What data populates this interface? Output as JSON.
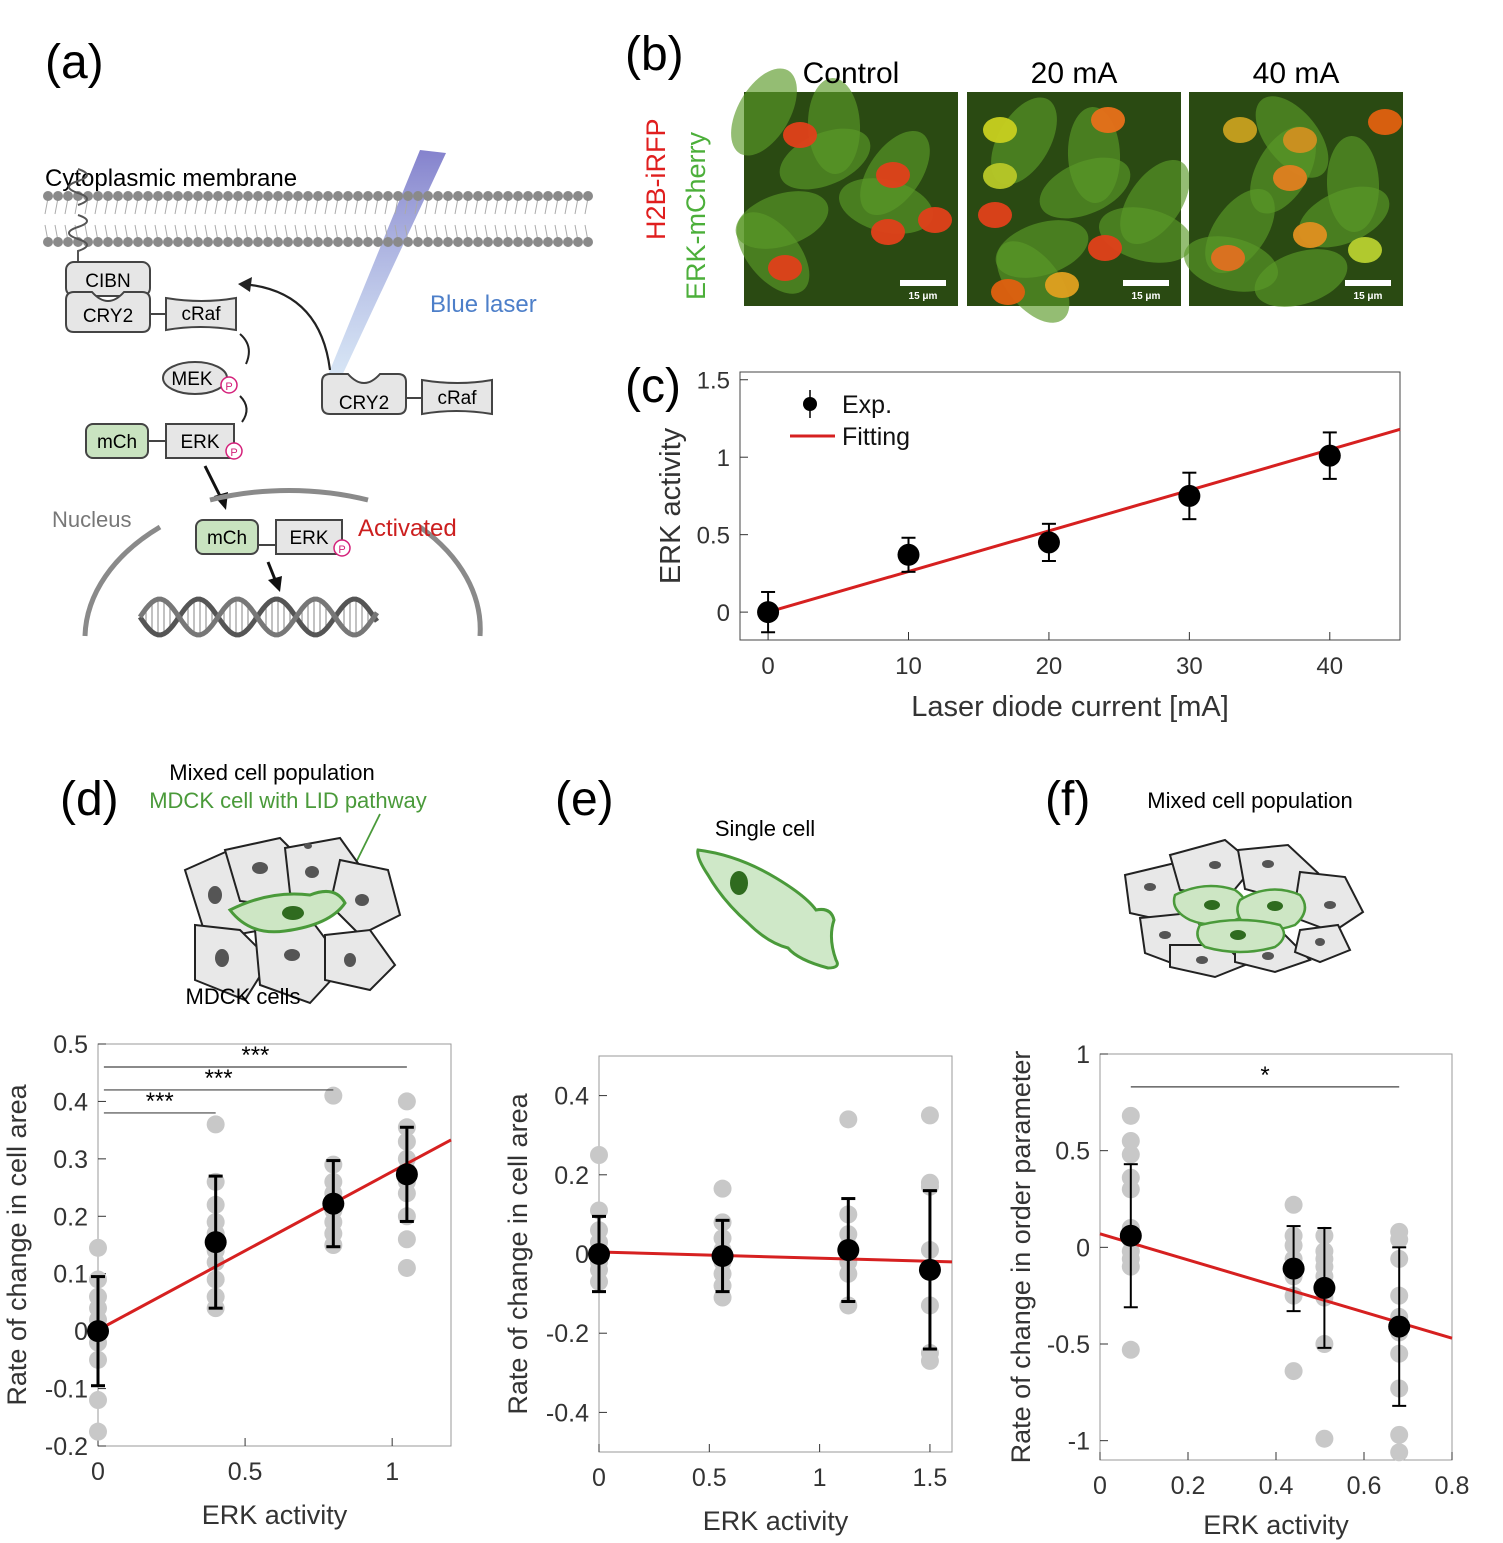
{
  "colors": {
    "exp_marker": "#000000",
    "fit_line": "#d62020",
    "scatter_points": "#c8c8c8",
    "green_cell": "#4a9a3a",
    "membrane": "#8a8a8a",
    "laser": "#5b8bd0",
    "activated_text": "#cc1f1f",
    "phospho": "#d4207a"
  },
  "panel_a": {
    "label": "(a)",
    "membrane": "Cytoplasmic membrane",
    "cibn": "CIBN",
    "cry2": "CRY2",
    "craf": "cRaf",
    "mek": "MEK",
    "erk": "ERK",
    "mch": "mCh",
    "phospho": "P",
    "laser": "Blue laser",
    "nucleus": "Nucleus",
    "activated": "Activated"
  },
  "panel_b": {
    "label": "(b)",
    "ylabel_red": "H2B-iRFP",
    "ylabel_green": "ERK-mCherry",
    "images": [
      {
        "title": "Control",
        "scale": "15 μm"
      },
      {
        "title": "20 mA",
        "scale": "15 μm"
      },
      {
        "title": "40 mA",
        "scale": "15 μm"
      }
    ]
  },
  "panel_d_schematic": {
    "label": "(d)",
    "title": "Mixed cell population",
    "subtitle": "MDCK cell with LID pathway",
    "bottom": "MDCK cells"
  },
  "panel_e_schematic": {
    "label": "(e)",
    "title": "Single cell"
  },
  "panel_f_schematic": {
    "label": "(f)",
    "title": "Mixed cell population"
  },
  "chart_data": [
    {
      "id": "c",
      "label": "(c)",
      "type": "scatter",
      "xlabel": "Laser diode current [mA]",
      "ylabel": "ERK activity",
      "xlim": [
        -2,
        45
      ],
      "ylim": [
        -0.18,
        1.55
      ],
      "xticks": [
        0,
        10,
        20,
        30,
        40
      ],
      "yticks": [
        0,
        0.5,
        1,
        1.5
      ],
      "legend": [
        "Exp.",
        "Fitting"
      ],
      "legend_position": "top-left",
      "series": [
        {
          "name": "Exp.",
          "x": [
            0,
            10,
            20,
            30,
            40
          ],
          "y": [
            0,
            0.37,
            0.45,
            0.75,
            1.01
          ],
          "err": [
            0.13,
            0.11,
            0.12,
            0.15,
            0.15
          ]
        }
      ],
      "fit": {
        "x": [
          0,
          45
        ],
        "y": [
          0,
          1.18
        ]
      }
    },
    {
      "id": "d",
      "type": "scatter",
      "xlabel": "ERK activity",
      "ylabel": "Rate of change in cell area",
      "xlim": [
        0,
        1.2
      ],
      "ylim": [
        -0.2,
        0.5
      ],
      "xticks": [
        0,
        0.5,
        1
      ],
      "yticks": [
        -0.2,
        -0.1,
        0,
        0.1,
        0.2,
        0.3,
        0.4,
        0.5
      ],
      "series": [
        {
          "name": "mean",
          "x": [
            0,
            0.4,
            0.8,
            1.05
          ],
          "y": [
            0,
            0.155,
            0.222,
            0.273
          ],
          "err": [
            0.095,
            0.115,
            0.075,
            0.082
          ]
        }
      ],
      "points": [
        {
          "x": 0,
          "y": [
            0.145,
            0.09,
            0.06,
            0.04,
            0.02,
            0,
            -0.02,
            -0.05,
            -0.12,
            -0.175
          ]
        },
        {
          "x": 0.4,
          "y": [
            0.36,
            0.26,
            0.22,
            0.19,
            0.17,
            0.14,
            0.12,
            0.09,
            0.06,
            0.04
          ]
        },
        {
          "x": 0.8,
          "y": [
            0.41,
            0.29,
            0.26,
            0.24,
            0.22,
            0.21,
            0.19,
            0.17,
            0.15
          ]
        },
        {
          "x": 1.05,
          "y": [
            0.4,
            0.355,
            0.33,
            0.3,
            0.28,
            0.26,
            0.24,
            0.2,
            0.16,
            0.11
          ]
        }
      ],
      "fit": {
        "x": [
          0,
          1.2
        ],
        "y": [
          0.002,
          0.333
        ]
      },
      "significance": [
        {
          "x1": 0.02,
          "x2": 0.4,
          "y": 0.38,
          "label": "***"
        },
        {
          "x1": 0.02,
          "x2": 0.8,
          "y": 0.42,
          "label": "***"
        },
        {
          "x1": 0.02,
          "x2": 1.05,
          "y": 0.46,
          "label": "***"
        }
      ]
    },
    {
      "id": "e",
      "type": "scatter",
      "xlabel": "ERK activity",
      "ylabel": "Rate of change in cell area",
      "xlim": [
        0,
        1.6
      ],
      "ylim": [
        -0.5,
        0.5
      ],
      "xticks": [
        0,
        0.5,
        1,
        1.5
      ],
      "yticks": [
        -0.4,
        -0.2,
        0,
        0.2,
        0.4
      ],
      "series": [
        {
          "name": "mean",
          "x": [
            0,
            0.56,
            1.13,
            1.5
          ],
          "y": [
            0,
            -0.005,
            0.01,
            -0.04
          ],
          "err": [
            0.095,
            0.09,
            0.13,
            0.2
          ]
        }
      ],
      "points": [
        {
          "x": 0,
          "y": [
            0.25,
            0.11,
            0.06,
            0.03,
            0,
            -0.02,
            -0.04,
            -0.07
          ]
        },
        {
          "x": 0.56,
          "y": [
            0.165,
            0.08,
            0.04,
            0.01,
            -0.02,
            -0.05,
            -0.08,
            -0.11
          ]
        },
        {
          "x": 1.13,
          "y": [
            0.34,
            0.1,
            0.05,
            0.02,
            -0.02,
            -0.05,
            -0.13
          ]
        },
        {
          "x": 1.5,
          "y": [
            0.35,
            0.18,
            0.17,
            0.01,
            -0.13,
            -0.25,
            -0.27
          ]
        }
      ],
      "fit": {
        "x": [
          0,
          1.6
        ],
        "y": [
          0.005,
          -0.02
        ]
      }
    },
    {
      "id": "f",
      "type": "scatter",
      "xlabel": "ERK activity",
      "ylabel": "Rate of change in order parameter",
      "xlim": [
        0,
        0.8
      ],
      "ylim": [
        -1.1,
        1
      ],
      "xticks": [
        0,
        0.2,
        0.4,
        0.6,
        0.8
      ],
      "yticks": [
        -1,
        -0.5,
        0,
        0.5,
        1
      ],
      "series": [
        {
          "name": "mean",
          "x": [
            0.07,
            0.44,
            0.51,
            0.68
          ],
          "y": [
            0.06,
            -0.11,
            -0.21,
            -0.41
          ],
          "err": [
            0.37,
            0.22,
            0.31,
            0.41
          ]
        }
      ],
      "points": [
        {
          "x": 0.07,
          "y": [
            0.68,
            0.55,
            0.48,
            0.36,
            0.3,
            0.1,
            0.04,
            -0.02,
            -0.06,
            -0.1,
            -0.53
          ]
        },
        {
          "x": 0.44,
          "y": [
            0.22,
            0.06,
            0.01,
            -0.06,
            -0.15,
            -0.25,
            -0.64
          ]
        },
        {
          "x": 0.51,
          "y": [
            0.06,
            -0.02,
            -0.06,
            -0.1,
            -0.15,
            -0.22,
            -0.26,
            -0.5,
            -0.99
          ]
        },
        {
          "x": 0.68,
          "y": [
            0.08,
            0.04,
            -0.06,
            -0.25,
            -0.36,
            -0.44,
            -0.55,
            -0.73,
            -0.97,
            -1.06
          ]
        }
      ],
      "fit": {
        "x": [
          0,
          0.8
        ],
        "y": [
          0.07,
          -0.47
        ]
      },
      "significance": [
        {
          "x1": 0.07,
          "x2": 0.68,
          "y": 0.83,
          "label": "*"
        }
      ]
    }
  ]
}
